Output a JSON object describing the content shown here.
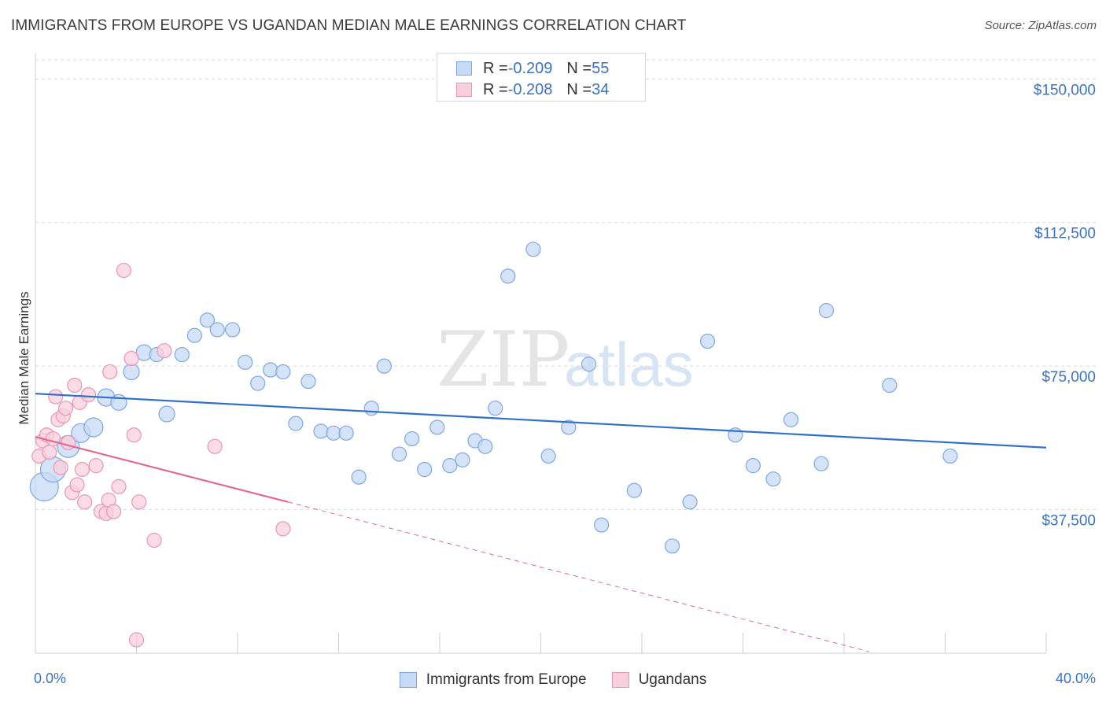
{
  "title": "IMMIGRANTS FROM EUROPE VS UGANDAN MEDIAN MALE EARNINGS CORRELATION CHART",
  "source": "Source: ZipAtlas.com",
  "watermark": {
    "zip": "ZIP",
    "atlas": "atlas"
  },
  "legend": {
    "rows": [
      {
        "r_label": "R = ",
        "r_value": "-0.209",
        "n_label": "N = ",
        "n_value": "55"
      },
      {
        "r_label": "R = ",
        "r_value": "-0.208",
        "n_label": "N = ",
        "n_value": "34"
      }
    ]
  },
  "colors": {
    "blue_fill": "#c7daf5",
    "blue_stroke": "#7fa7e0",
    "blue_line": "#3070c8",
    "pink_fill": "#f9cfdc",
    "pink_stroke": "#e996b2",
    "pink_line": "#e06a94",
    "grid": "#d9d9d9",
    "tick_text": "#3b73c4"
  },
  "chart_data": {
    "type": "scatter",
    "title": "IMMIGRANTS FROM EUROPE VS UGANDAN MEDIAN MALE EARNINGS CORRELATION CHART",
    "xlabel": "",
    "ylabel": "Median Male Earnings",
    "xlim": [
      0,
      40
    ],
    "ylim": [
      0,
      155000
    ],
    "x_tick_labels": [
      {
        "value": 0,
        "label": "0.0%"
      },
      {
        "value": 40,
        "label": "40.0%"
      }
    ],
    "y_ticks": [
      {
        "value": 37500,
        "label": "$37,500"
      },
      {
        "value": 75000,
        "label": "$75,000"
      },
      {
        "value": 112500,
        "label": "$112,500"
      },
      {
        "value": 150000,
        "label": "$150,000"
      }
    ],
    "grid": "horizontal dashed",
    "legend_position": "bottom",
    "series": [
      {
        "name": "Immigrants from Europe",
        "color": "#7fa7e0",
        "trend": {
          "x": [
            0,
            40
          ],
          "y": [
            67800,
            53700
          ],
          "dashed_extension": false
        },
        "points": [
          {
            "x": 0.35,
            "y": 43500,
            "r": 18
          },
          {
            "x": 0.7,
            "y": 48000,
            "r": 16
          },
          {
            "x": 1.3,
            "y": 54000,
            "r": 14
          },
          {
            "x": 1.8,
            "y": 57500,
            "r": 12
          },
          {
            "x": 2.3,
            "y": 59000,
            "r": 12
          },
          {
            "x": 2.8,
            "y": 66800,
            "r": 11
          },
          {
            "x": 3.3,
            "y": 65500,
            "r": 10
          },
          {
            "x": 3.8,
            "y": 73500,
            "r": 10
          },
          {
            "x": 4.3,
            "y": 78500,
            "r": 10
          },
          {
            "x": 4.8,
            "y": 78000,
            "r": 9
          },
          {
            "x": 5.2,
            "y": 62500,
            "r": 10
          },
          {
            "x": 5.8,
            "y": 78000,
            "r": 9
          },
          {
            "x": 6.3,
            "y": 83000,
            "r": 9
          },
          {
            "x": 6.8,
            "y": 87000,
            "r": 9
          },
          {
            "x": 7.2,
            "y": 84500,
            "r": 9
          },
          {
            "x": 7.8,
            "y": 84500,
            "r": 9
          },
          {
            "x": 8.3,
            "y": 76000,
            "r": 9
          },
          {
            "x": 8.8,
            "y": 70500,
            "r": 9
          },
          {
            "x": 9.3,
            "y": 74000,
            "r": 9
          },
          {
            "x": 9.8,
            "y": 73500,
            "r": 9
          },
          {
            "x": 10.3,
            "y": 60000,
            "r": 9
          },
          {
            "x": 10.8,
            "y": 71000,
            "r": 9
          },
          {
            "x": 11.3,
            "y": 58000,
            "r": 9
          },
          {
            "x": 11.8,
            "y": 57500,
            "r": 9
          },
          {
            "x": 12.3,
            "y": 57500,
            "r": 9
          },
          {
            "x": 12.8,
            "y": 46000,
            "r": 9
          },
          {
            "x": 13.3,
            "y": 64000,
            "r": 9
          },
          {
            "x": 13.8,
            "y": 75000,
            "r": 9
          },
          {
            "x": 14.4,
            "y": 52000,
            "r": 9
          },
          {
            "x": 14.9,
            "y": 56000,
            "r": 9
          },
          {
            "x": 15.4,
            "y": 48000,
            "r": 9
          },
          {
            "x": 15.9,
            "y": 59000,
            "r": 9
          },
          {
            "x": 16.4,
            "y": 49000,
            "r": 9
          },
          {
            "x": 16.9,
            "y": 50500,
            "r": 9
          },
          {
            "x": 17.4,
            "y": 55500,
            "r": 9
          },
          {
            "x": 17.8,
            "y": 54000,
            "r": 9
          },
          {
            "x": 18.2,
            "y": 64000,
            "r": 9
          },
          {
            "x": 18.7,
            "y": 98500,
            "r": 9
          },
          {
            "x": 19.7,
            "y": 105500,
            "r": 9
          },
          {
            "x": 20.3,
            "y": 51500,
            "r": 9
          },
          {
            "x": 21.1,
            "y": 59000,
            "r": 9
          },
          {
            "x": 21.9,
            "y": 75500,
            "r": 9
          },
          {
            "x": 22.4,
            "y": 33500,
            "r": 9
          },
          {
            "x": 23.7,
            "y": 42500,
            "r": 9
          },
          {
            "x": 25.2,
            "y": 28000,
            "r": 9
          },
          {
            "x": 25.9,
            "y": 39500,
            "r": 9
          },
          {
            "x": 26.6,
            "y": 81500,
            "r": 9
          },
          {
            "x": 27.7,
            "y": 57000,
            "r": 9
          },
          {
            "x": 28.4,
            "y": 49000,
            "r": 9
          },
          {
            "x": 29.2,
            "y": 45500,
            "r": 9
          },
          {
            "x": 29.9,
            "y": 61000,
            "r": 9
          },
          {
            "x": 31.1,
            "y": 49500,
            "r": 9
          },
          {
            "x": 31.3,
            "y": 89500,
            "r": 9
          },
          {
            "x": 33.8,
            "y": 70000,
            "r": 9
          },
          {
            "x": 36.2,
            "y": 51500,
            "r": 9
          }
        ]
      },
      {
        "name": "Ugandans",
        "color": "#e996b2",
        "trend": {
          "x": [
            0,
            10
          ],
          "y": [
            56500,
            39500
          ],
          "dashed_extension": true,
          "extend_to_x": 33
        },
        "points": [
          {
            "x": 0.15,
            "y": 51500,
            "r": 9
          },
          {
            "x": 0.3,
            "y": 55500,
            "r": 9
          },
          {
            "x": 0.45,
            "y": 57000,
            "r": 9
          },
          {
            "x": 0.55,
            "y": 52500,
            "r": 9
          },
          {
            "x": 0.7,
            "y": 56000,
            "r": 9
          },
          {
            "x": 0.8,
            "y": 67000,
            "r": 9
          },
          {
            "x": 0.9,
            "y": 61000,
            "r": 9
          },
          {
            "x": 1.0,
            "y": 48500,
            "r": 9
          },
          {
            "x": 1.1,
            "y": 62000,
            "r": 9
          },
          {
            "x": 1.2,
            "y": 64000,
            "r": 9
          },
          {
            "x": 1.3,
            "y": 55000,
            "r": 9
          },
          {
            "x": 1.45,
            "y": 42000,
            "r": 9
          },
          {
            "x": 1.55,
            "y": 70000,
            "r": 9
          },
          {
            "x": 1.65,
            "y": 44000,
            "r": 9
          },
          {
            "x": 1.75,
            "y": 65500,
            "r": 9
          },
          {
            "x": 1.85,
            "y": 48000,
            "r": 9
          },
          {
            "x": 1.95,
            "y": 39500,
            "r": 9
          },
          {
            "x": 2.1,
            "y": 67500,
            "r": 9
          },
          {
            "x": 2.4,
            "y": 49000,
            "r": 9
          },
          {
            "x": 2.6,
            "y": 37000,
            "r": 9
          },
          {
            "x": 2.8,
            "y": 36500,
            "r": 9
          },
          {
            "x": 2.9,
            "y": 40000,
            "r": 9
          },
          {
            "x": 2.95,
            "y": 73500,
            "r": 9
          },
          {
            "x": 3.1,
            "y": 37000,
            "r": 9
          },
          {
            "x": 3.3,
            "y": 43500,
            "r": 9
          },
          {
            "x": 3.5,
            "y": 100000,
            "r": 9
          },
          {
            "x": 3.8,
            "y": 77000,
            "r": 9
          },
          {
            "x": 3.9,
            "y": 57000,
            "r": 9
          },
          {
            "x": 4.0,
            "y": 3500,
            "r": 9
          },
          {
            "x": 4.1,
            "y": 39500,
            "r": 9
          },
          {
            "x": 4.7,
            "y": 29500,
            "r": 9
          },
          {
            "x": 5.1,
            "y": 79000,
            "r": 9
          },
          {
            "x": 7.1,
            "y": 54000,
            "r": 9
          },
          {
            "x": 9.8,
            "y": 32500,
            "r": 9
          }
        ]
      }
    ]
  }
}
